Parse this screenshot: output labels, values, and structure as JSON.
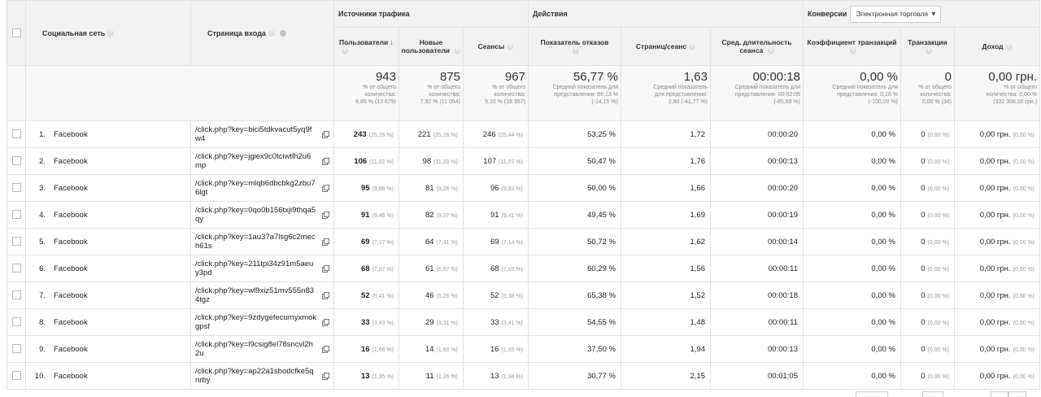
{
  "groups": {
    "traffic": "Источники трафика",
    "actions": "Действия",
    "conversions": "Конверсии",
    "conversion_select": "Электронная торговля"
  },
  "columns": {
    "social": "Социальная сеть",
    "landing": "Страница входа",
    "users": "Пользователи",
    "new_users": "Новые пользователи",
    "sessions": "Сеансы",
    "bounce": "Показатель отказов",
    "pages": "Страниц/сеанс",
    "duration": "Сред. длительность сеанса",
    "conv_rate": "Коэффициент транзакций",
    "transactions": "Транзакции",
    "revenue": "Доход"
  },
  "totals": {
    "users": {
      "value": "943",
      "line1": "% от общего",
      "line2": "количества:",
      "line3": "6,89 % (13 679)"
    },
    "new_users": {
      "value": "875",
      "line1": "% от общего",
      "line2": "количества:",
      "line3": "7,92 % (11 054)"
    },
    "sessions": {
      "value": "967",
      "line1": "% от общего",
      "line2": "количества:",
      "line3": "5,10 % (18 957)"
    },
    "bounce": {
      "value": "56,77 %",
      "line1": "Средний показатель для",
      "line2": "представления: 66,13 %",
      "line3": "(-14,15 %)"
    },
    "pages": {
      "value": "1,63",
      "line1": "Средний показатель",
      "line2": "для представления:",
      "line3": "2,80 (-41,77 %)"
    },
    "duration": {
      "value": "00:00:18",
      "line1": "Средний показатель для",
      "line2": "представления: 00:02:06",
      "line3": "(-85,69 %)"
    },
    "conv_rate": {
      "value": "0,00 %",
      "line1": "Средний показатель для",
      "line2": "представления: 0,18 %",
      "line3": "(-100,00 %)"
    },
    "transactions": {
      "value": "0",
      "line1": "% от общего",
      "line2": "количества:",
      "line3": "0,00 % (34)"
    },
    "revenue": {
      "value": "0,00 грн.",
      "line1": "% от общего",
      "line2": "количества: 0,00 %",
      "line3": "(332 308,00 грн.)"
    }
  },
  "rows": [
    {
      "idx": "1.",
      "network": "Facebook",
      "page": "/click.php?key=bici5tdkvacut5yq9fw4",
      "users": "243",
      "users_pct": "(25,26 %)",
      "new_users": "221",
      "new_users_pct": "(25,26 %)",
      "sessions": "246",
      "sessions_pct": "(25,44 %)",
      "bounce": "53,25 %",
      "pages": "1,72",
      "duration": "00:00:20",
      "conv_rate": "0,00 %",
      "transactions": "0",
      "transactions_pct": "(0,00 %)",
      "revenue": "0,00 грн.",
      "revenue_pct": "(0,00 %)"
    },
    {
      "idx": "2.",
      "network": "Facebook",
      "page": "/click.php?key=jgiex9c0tciwtlh2u6mp",
      "users": "106",
      "users_pct": "(11,02 %)",
      "new_users": "98",
      "new_users_pct": "(11,20 %)",
      "sessions": "107",
      "sessions_pct": "(11,07 %)",
      "bounce": "50,47 %",
      "pages": "1,76",
      "duration": "00:00:13",
      "conv_rate": "0,00 %",
      "transactions": "0",
      "transactions_pct": "(0,00 %)",
      "revenue": "0,00 грн.",
      "revenue_pct": "(0,00 %)"
    },
    {
      "idx": "3.",
      "network": "Facebook",
      "page": "/click.php?key=mlqb6dbcbkg2zbu76lgt",
      "users": "95",
      "users_pct": "(9,88 %)",
      "new_users": "81",
      "new_users_pct": "(9,26 %)",
      "sessions": "96",
      "sessions_pct": "(9,93 %)",
      "bounce": "50,00 %",
      "pages": "1,66",
      "duration": "00:00:20",
      "conv_rate": "0,00 %",
      "transactions": "0",
      "transactions_pct": "(0,00 %)",
      "revenue": "0,00 грн.",
      "revenue_pct": "(0,00 %)"
    },
    {
      "idx": "4.",
      "network": "Facebook",
      "page": "/click.php?key=0qo0b156txji9thqa5qy",
      "users": "91",
      "users_pct": "(9,46 %)",
      "new_users": "82",
      "new_users_pct": "(9,37 %)",
      "sessions": "91",
      "sessions_pct": "(9,41 %)",
      "bounce": "49,45 %",
      "pages": "1,69",
      "duration": "00:00:19",
      "conv_rate": "0,00 %",
      "transactions": "0",
      "transactions_pct": "(0,00 %)",
      "revenue": "0,00 грн.",
      "revenue_pct": "(0,00 %)"
    },
    {
      "idx": "5.",
      "network": "Facebook",
      "page": "/click.php?key=1au37a7lsg6c2mech61s",
      "users": "69",
      "users_pct": "(7,17 %)",
      "new_users": "64",
      "new_users_pct": "(7,31 %)",
      "sessions": "69",
      "sessions_pct": "(7,14 %)",
      "bounce": "50,72 %",
      "pages": "1,62",
      "duration": "00:00:14",
      "conv_rate": "0,00 %",
      "transactions": "0",
      "transactions_pct": "(0,00 %)",
      "revenue": "0,00 грн.",
      "revenue_pct": "(0,00 %)"
    },
    {
      "idx": "6.",
      "network": "Facebook",
      "page": "/click.php?key=211tpi34z91m5aeuy3pd",
      "users": "68",
      "users_pct": "(7,07 %)",
      "new_users": "61",
      "new_users_pct": "(6,97 %)",
      "sessions": "68",
      "sessions_pct": "(7,03 %)",
      "bounce": "60,29 %",
      "pages": "1,56",
      "duration": "00:00:11",
      "conv_rate": "0,00 %",
      "transactions": "0",
      "transactions_pct": "(0,00 %)",
      "revenue": "0,00 грн.",
      "revenue_pct": "(0,00 %)"
    },
    {
      "idx": "7.",
      "network": "Facebook",
      "page": "/click.php?key=wl9xiz51mv555n834tgz",
      "users": "52",
      "users_pct": "(5,41 %)",
      "new_users": "46",
      "new_users_pct": "(5,26 %)",
      "sessions": "52",
      "sessions_pct": "(5,38 %)",
      "bounce": "65,38 %",
      "pages": "1,52",
      "duration": "00:00:18",
      "conv_rate": "0,00 %",
      "transactions": "0",
      "transactions_pct": "(0,00 %)",
      "revenue": "0,00 грн.",
      "revenue_pct": "(0,00 %)"
    },
    {
      "idx": "8.",
      "network": "Facebook",
      "page": "/click.php?key=9zdygefecumyxmokgpsf",
      "users": "33",
      "users_pct": "(3,43 %)",
      "new_users": "29",
      "new_users_pct": "(3,31 %)",
      "sessions": "33",
      "sessions_pct": "(3,41 %)",
      "bounce": "54,55 %",
      "pages": "1,48",
      "duration": "00:00:11",
      "conv_rate": "0,00 %",
      "transactions": "0",
      "transactions_pct": "(0,00 %)",
      "revenue": "0,00 грн.",
      "revenue_pct": "(0,00 %)"
    },
    {
      "idx": "9.",
      "network": "Facebook",
      "page": "/click.php?key=l9csig8el78sncvl2h2u",
      "users": "16",
      "users_pct": "(1,66 %)",
      "new_users": "14",
      "new_users_pct": "(1,60 %)",
      "sessions": "16",
      "sessions_pct": "(1,65 %)",
      "bounce": "37,50 %",
      "pages": "1,94",
      "duration": "00:00:13",
      "conv_rate": "0,00 %",
      "transactions": "0",
      "transactions_pct": "(0,00 %)",
      "revenue": "0,00 грн.",
      "revenue_pct": "(0,00 %)"
    },
    {
      "idx": "10.",
      "network": "Facebook",
      "page": "/click.php?key=ap22a1sbodcfke5qnrby",
      "users": "13",
      "users_pct": "(1,35 %)",
      "new_users": "11",
      "new_users_pct": "(1,26 %)",
      "sessions": "13",
      "sessions_pct": "(1,34 %)",
      "bounce": "30,77 %",
      "pages": "2,15",
      "duration": "00:01:05",
      "conv_rate": "0,00 %",
      "transactions": "0",
      "transactions_pct": "(0,00 %)",
      "revenue": "0,00 грн.",
      "revenue_pct": "(0,00 %)"
    }
  ]
}
